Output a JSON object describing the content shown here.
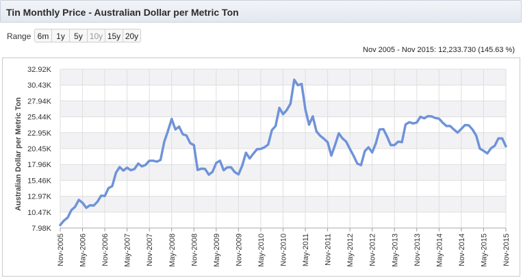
{
  "header": {
    "title": "Tin Monthly Price - Australian Dollar per Metric Ton"
  },
  "range": {
    "label": "Range",
    "buttons": [
      {
        "label": "6m",
        "enabled": true
      },
      {
        "label": "1y",
        "enabled": true
      },
      {
        "label": "5y",
        "enabled": true
      },
      {
        "label": "10y",
        "enabled": false
      },
      {
        "label": "15y",
        "enabled": true
      },
      {
        "label": "20y",
        "enabled": true
      }
    ]
  },
  "summary": "Nov 2005 - Nov 2015: 12,233.730 (145.63 %)",
  "colors": {
    "line": "#6f93d8",
    "band": "#f2f2f5",
    "grid": "#dedede"
  },
  "chart_data": {
    "type": "line",
    "ylabel": "Australian Dollar per Metric Ton",
    "ylim": [
      7980,
      32920
    ],
    "y_ticks": [
      "7.98K",
      "10.47K",
      "12.97K",
      "15.46K",
      "17.96K",
      "20.45K",
      "22.95K",
      "25.44K",
      "27.94K",
      "30.43K",
      "32.92K"
    ],
    "x_ticks": [
      "Nov-2005",
      "May-2006",
      "Nov-2006",
      "May-2007",
      "Nov-2007",
      "May-2008",
      "Nov-2008",
      "May-2009",
      "Nov-2009",
      "May-2010",
      "Nov-2010",
      "May-2011",
      "Nov-2011",
      "May-2012",
      "Nov-2012",
      "May-2013",
      "Nov-2013",
      "May-2014",
      "Nov-2014",
      "May-2015",
      "Nov-2015"
    ],
    "series": [
      {
        "values": [
          8450,
          9150,
          9600,
          10800,
          11300,
          12400,
          11950,
          11150,
          11550,
          11500,
          12100,
          13050,
          13000,
          14250,
          14550,
          16650,
          17550,
          17000,
          17450,
          17050,
          17250,
          18100,
          17650,
          17900,
          18550,
          18550,
          18400,
          18650,
          21500,
          23200,
          25100,
          23450,
          23900,
          22700,
          22500,
          21300,
          21000,
          17100,
          17300,
          17250,
          16350,
          16800,
          18200,
          18550,
          17050,
          17500,
          17500,
          16750,
          16400,
          17750,
          19800,
          18900,
          19650,
          20350,
          20400,
          20650,
          21100,
          23350,
          24000,
          26850,
          25850,
          26500,
          27500,
          31250,
          30400,
          30600,
          26600,
          24200,
          25500,
          23150,
          22450,
          22000,
          21450,
          19350,
          21000,
          22850,
          22050,
          21550,
          20400,
          19300,
          18100,
          17850,
          20050,
          20650,
          19850,
          21300,
          23450,
          23500,
          22350,
          21000,
          21000,
          21550,
          21450,
          24250,
          24600,
          24400,
          24550,
          25450,
          25200,
          25550,
          25500,
          25250,
          25150,
          24500,
          24000,
          24000,
          23450,
          22950,
          23550,
          24150,
          24100,
          23450,
          22500,
          20450,
          20100,
          19700,
          20500,
          20900,
          22050,
          22050,
          20800
        ]
      }
    ]
  }
}
